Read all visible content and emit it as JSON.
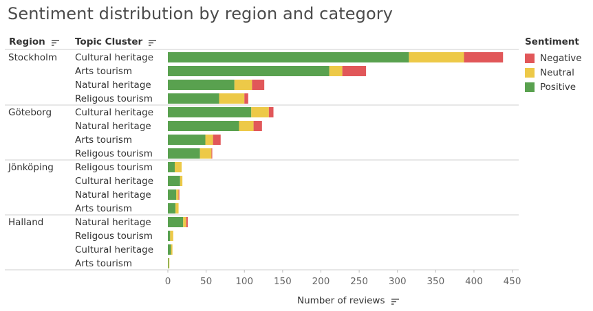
{
  "title": "Sentiment distribution by region and category",
  "headers": {
    "region": "Region",
    "topic": "Topic Cluster"
  },
  "legend": {
    "title": "Sentiment",
    "items": [
      {
        "label": "Negative",
        "color": "#e15759"
      },
      {
        "label": "Neutral",
        "color": "#edc948"
      },
      {
        "label": "Positive",
        "color": "#59a14f"
      }
    ]
  },
  "chart_data": {
    "type": "bar",
    "orientation": "horizontal",
    "stacked": true,
    "title": "Sentiment distribution by region and category",
    "xlabel": "Number of reviews",
    "xlim": [
      0,
      450
    ],
    "xticks": [
      0,
      50,
      100,
      150,
      200,
      250,
      300,
      350,
      400,
      450
    ],
    "series_order": [
      "Positive",
      "Neutral",
      "Negative"
    ],
    "colors": {
      "Positive": "#59a14f",
      "Neutral": "#edc948",
      "Negative": "#e15759"
    },
    "groups": [
      {
        "region": "Stockholm",
        "rows": [
          {
            "category": "Cultural heritage",
            "Positive": 315,
            "Neutral": 72,
            "Negative": 51
          },
          {
            "category": "Arts tourism",
            "Positive": 211,
            "Neutral": 17,
            "Negative": 31
          },
          {
            "category": "Natural heritage",
            "Positive": 87,
            "Neutral": 23,
            "Negative": 16
          },
          {
            "category": "Religous tourism",
            "Positive": 67,
            "Neutral": 33,
            "Negative": 5
          }
        ]
      },
      {
        "region": "Göteborg",
        "rows": [
          {
            "category": "Cultural heritage",
            "Positive": 109,
            "Neutral": 23,
            "Negative": 6
          },
          {
            "category": "Natural heritage",
            "Positive": 93,
            "Neutral": 19,
            "Negative": 11
          },
          {
            "category": "Arts tourism",
            "Positive": 49,
            "Neutral": 10,
            "Negative": 10
          },
          {
            "category": "Religous tourism",
            "Positive": 42,
            "Neutral": 15,
            "Negative": 1
          }
        ]
      },
      {
        "region": "Jönköping",
        "rows": [
          {
            "category": "Religous tourism",
            "Positive": 9,
            "Neutral": 9,
            "Negative": 0
          },
          {
            "category": "Cultural heritage",
            "Positive": 16,
            "Neutral": 3,
            "Negative": 0
          },
          {
            "category": "Natural heritage",
            "Positive": 11,
            "Neutral": 3,
            "Negative": 1
          },
          {
            "category": "Arts tourism",
            "Positive": 10,
            "Neutral": 4,
            "Negative": 0
          }
        ]
      },
      {
        "region": "Halland",
        "rows": [
          {
            "category": "Natural heritage",
            "Positive": 20,
            "Neutral": 4,
            "Negative": 2
          },
          {
            "category": "Religous tourism",
            "Positive": 3,
            "Neutral": 4,
            "Negative": 0
          },
          {
            "category": "Cultural heritage",
            "Positive": 4,
            "Neutral": 2,
            "Negative": 0
          },
          {
            "category": "Arts tourism",
            "Positive": 1,
            "Neutral": 1,
            "Negative": 0
          }
        ]
      }
    ]
  }
}
